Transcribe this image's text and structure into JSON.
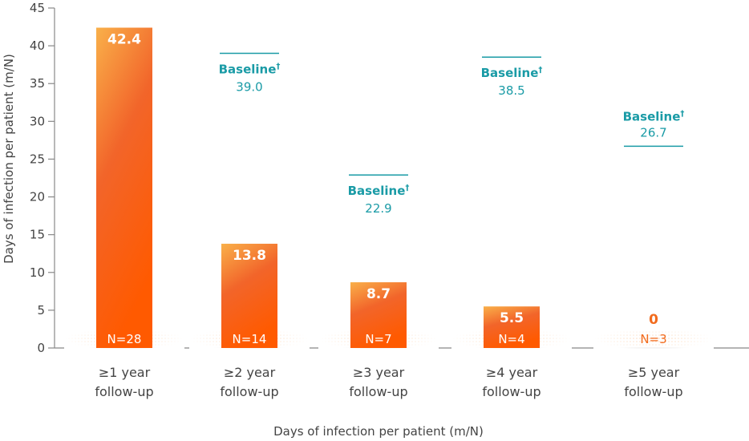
{
  "chart_data": {
    "type": "bar",
    "title": "",
    "xlabel": "Days of infection per patient (m/N)",
    "ylabel": "Days of infection per patient (m/N)",
    "ylim": [
      0,
      45
    ],
    "yticks": [
      0,
      5,
      10,
      15,
      20,
      25,
      30,
      35,
      40,
      45
    ],
    "categories": [
      {
        "line1": "≥1 year",
        "line2": "follow-up"
      },
      {
        "line1": "≥2 year",
        "line2": "follow-up"
      },
      {
        "line1": "≥3 year",
        "line2": "follow-up"
      },
      {
        "line1": "≥4 year",
        "line2": "follow-up"
      },
      {
        "line1": "≥5 year",
        "line2": "follow-up"
      }
    ],
    "values": [
      42.4,
      13.8,
      8.7,
      5.5,
      0
    ],
    "value_labels": [
      "42.4",
      "13.8",
      "8.7",
      "5.5",
      "0"
    ],
    "n_labels": [
      "N=28",
      "N=14",
      "N=7",
      "N=4",
      "N=3"
    ],
    "baseline": {
      "label": "Baseline",
      "marker": "†",
      "values": [
        null,
        39.0,
        22.9,
        38.5,
        26.7
      ],
      "value_labels": [
        "",
        "39.0",
        "22.9",
        "38.5",
        "26.7"
      ]
    },
    "colors": {
      "bar_top": "#f7a640",
      "bar_mid": "#f2652a",
      "bar_bottom": "#ff5a00",
      "baseline": "#1a9ba6",
      "axis": "#888888",
      "text": "#444444"
    },
    "grid": false
  }
}
